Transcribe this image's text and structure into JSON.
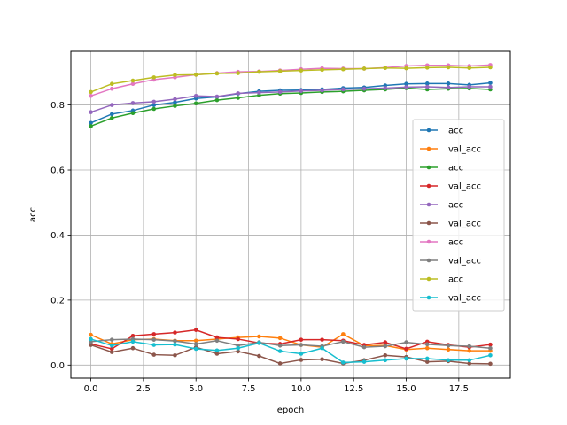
{
  "chart_data": {
    "type": "line",
    "xlabel": "epoch",
    "ylabel": "acc",
    "xlim": [
      -0.95,
      19.95
    ],
    "ylim": [
      -0.04,
      0.965
    ],
    "x_ticks": [
      0.0,
      2.5,
      5.0,
      7.5,
      10.0,
      12.5,
      15.0,
      17.5
    ],
    "x_tick_labels": [
      "0.0",
      "2.5",
      "5.0",
      "7.5",
      "10.0",
      "12.5",
      "15.0",
      "17.5"
    ],
    "y_ticks": [
      0.0,
      0.2,
      0.4,
      0.6,
      0.8
    ],
    "y_tick_labels": [
      "0.0",
      "0.2",
      "0.4",
      "0.6",
      "0.8"
    ],
    "grid": true,
    "legend_position": "center-right",
    "x": [
      0,
      1,
      2,
      3,
      4,
      5,
      6,
      7,
      8,
      9,
      10,
      11,
      12,
      13,
      14,
      15,
      16,
      17,
      18,
      19
    ],
    "series": [
      {
        "name": "acc",
        "color": "#1f77b4",
        "values": [
          0.745,
          0.772,
          0.783,
          0.8,
          0.808,
          0.82,
          0.825,
          0.835,
          0.842,
          0.845,
          0.846,
          0.848,
          0.852,
          0.854,
          0.86,
          0.865,
          0.866,
          0.866,
          0.862,
          0.868
        ]
      },
      {
        "name": "val_acc",
        "color": "#ff7f0e",
        "values": [
          0.093,
          0.065,
          0.078,
          0.08,
          0.075,
          0.075,
          0.08,
          0.085,
          0.088,
          0.083,
          0.062,
          0.055,
          0.095,
          0.06,
          0.06,
          0.048,
          0.052,
          0.048,
          0.044,
          0.044
        ]
      },
      {
        "name": "acc",
        "color": "#2ca02c",
        "values": [
          0.735,
          0.76,
          0.775,
          0.788,
          0.797,
          0.805,
          0.815,
          0.822,
          0.83,
          0.835,
          0.837,
          0.84,
          0.842,
          0.845,
          0.848,
          0.852,
          0.848,
          0.85,
          0.851,
          0.848
        ]
      },
      {
        "name": "val_acc",
        "color": "#d62728",
        "values": [
          0.065,
          0.05,
          0.09,
          0.095,
          0.1,
          0.108,
          0.085,
          0.08,
          0.068,
          0.065,
          0.078,
          0.078,
          0.075,
          0.062,
          0.07,
          0.05,
          0.072,
          0.062,
          0.055,
          0.063
        ]
      },
      {
        "name": "acc",
        "color": "#9467bd",
        "values": [
          0.778,
          0.8,
          0.806,
          0.81,
          0.818,
          0.828,
          0.826,
          0.836,
          0.838,
          0.84,
          0.843,
          0.845,
          0.848,
          0.85,
          0.852,
          0.855,
          0.856,
          0.854,
          0.856,
          0.856
        ]
      },
      {
        "name": "val_acc",
        "color": "#8c564b",
        "values": [
          0.062,
          0.04,
          0.052,
          0.032,
          0.03,
          0.055,
          0.035,
          0.042,
          0.028,
          0.005,
          0.016,
          0.018,
          0.005,
          0.015,
          0.03,
          0.025,
          0.01,
          0.012,
          0.005,
          0.004
        ]
      },
      {
        "name": "acc",
        "color": "#e377c2",
        "values": [
          0.828,
          0.85,
          0.865,
          0.878,
          0.885,
          0.893,
          0.898,
          0.902,
          0.903,
          0.906,
          0.91,
          0.913,
          0.912,
          0.912,
          0.915,
          0.92,
          0.922,
          0.922,
          0.92,
          0.923
        ]
      },
      {
        "name": "val_acc",
        "color": "#7f7f7f",
        "values": [
          0.072,
          0.078,
          0.08,
          0.078,
          0.074,
          0.065,
          0.075,
          0.06,
          0.07,
          0.06,
          0.062,
          0.058,
          0.072,
          0.055,
          0.058,
          0.07,
          0.064,
          0.06,
          0.058,
          0.052
        ]
      },
      {
        "name": "acc",
        "color": "#bcbd22",
        "values": [
          0.84,
          0.865,
          0.875,
          0.885,
          0.892,
          0.893,
          0.897,
          0.898,
          0.902,
          0.904,
          0.906,
          0.908,
          0.91,
          0.912,
          0.914,
          0.913,
          0.915,
          0.916,
          0.914,
          0.916
        ]
      },
      {
        "name": "val_acc",
        "color": "#17becf",
        "values": [
          0.08,
          0.06,
          0.072,
          0.062,
          0.063,
          0.05,
          0.045,
          0.052,
          0.068,
          0.043,
          0.035,
          0.052,
          0.008,
          0.01,
          0.015,
          0.02,
          0.02,
          0.015,
          0.015,
          0.03
        ]
      }
    ]
  }
}
